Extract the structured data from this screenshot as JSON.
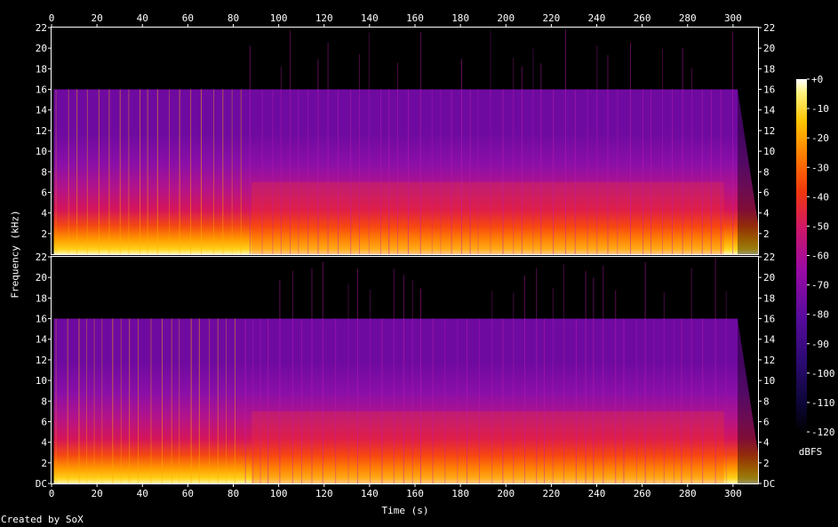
{
  "chart_data": {
    "type": "heatmap",
    "title": "",
    "xlabel": "Time (s)",
    "ylabel": "Frequency (kHz)",
    "xlim": [
      0,
      311
    ],
    "ylim": [
      0,
      22
    ],
    "x_ticks": [
      "0",
      "20",
      "40",
      "60",
      "80",
      "100",
      "120",
      "140",
      "160",
      "180",
      "200",
      "220",
      "240",
      "260",
      "280",
      "300"
    ],
    "x_tick_values": [
      0,
      20,
      40,
      60,
      80,
      100,
      120,
      140,
      160,
      180,
      200,
      220,
      240,
      260,
      280,
      300
    ],
    "y_ticks_top": [
      "22",
      "20",
      "18",
      "16",
      "14",
      "12",
      "10",
      "8",
      "6",
      "4",
      "2"
    ],
    "y_ticks_bottom": [
      "22",
      "20",
      "18",
      "16",
      "14",
      "12",
      "10",
      "8",
      "6",
      "4",
      "2",
      "DC"
    ],
    "y_tick_values_top": [
      22,
      20,
      18,
      16,
      14,
      12,
      10,
      8,
      6,
      4,
      2
    ],
    "y_tick_values_bottom": [
      22,
      20,
      18,
      16,
      14,
      12,
      10,
      8,
      6,
      4,
      2,
      0
    ],
    "channels": 2,
    "lowpass_cutoff_khz": 16,
    "audio_end_s": 302,
    "colorbar": {
      "label": "dBFS",
      "ticks": [
        "+0",
        "-10",
        "-20",
        "-30",
        "-40",
        "-50",
        "-60",
        "-70",
        "-80",
        "-90",
        "-100",
        "-110",
        "-120"
      ],
      "tick_values": [
        0,
        -10,
        -20,
        -30,
        -40,
        -50,
        -60,
        -70,
        -80,
        -90,
        -100,
        -110,
        -120
      ],
      "range": [
        -120,
        0
      ]
    }
  },
  "footer": {
    "credit": "Created by SoX"
  }
}
